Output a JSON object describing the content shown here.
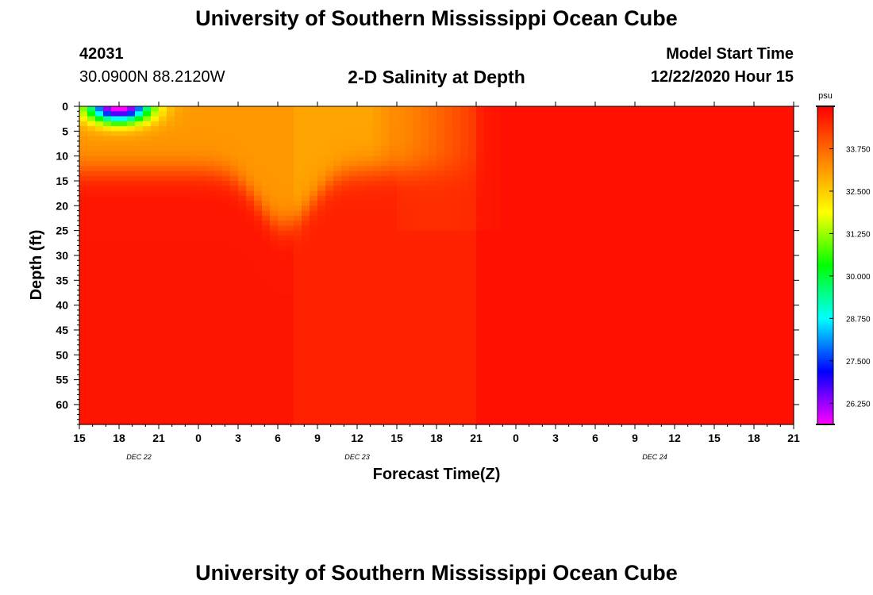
{
  "header": {
    "title": "University of Southern Mississippi Ocean Cube",
    "station_id": "42031",
    "station_coords": "30.0900N 88.2120W",
    "plot_title": "2-D Salinity at Depth",
    "start_label": "Model Start Time",
    "start_value": "12/22/2020 Hour 15"
  },
  "footer": {
    "title": "University of Southern Mississippi Ocean Cube"
  },
  "chart_data": {
    "type": "heatmap",
    "title": "2-D Salinity at Depth",
    "xlabel": "Forecast Time(Z)",
    "ylabel": "Depth (ft)",
    "x_range_hours": [
      0,
      54
    ],
    "ylim": [
      0,
      64
    ],
    "y_inverted": true,
    "x_ticks": [
      "15",
      "18",
      "21",
      "0",
      "3",
      "6",
      "9",
      "12",
      "15",
      "18",
      "21",
      "0",
      "3",
      "6",
      "9",
      "12",
      "15",
      "18",
      "21"
    ],
    "day_labels": [
      {
        "label": "DEC 22",
        "hour": 4.5
      },
      {
        "label": "DEC 23",
        "hour": 21
      },
      {
        "label": "DEC 24",
        "hour": 43.5
      }
    ],
    "y_ticks": [
      0,
      5,
      10,
      15,
      20,
      25,
      30,
      35,
      40,
      45,
      50,
      55,
      60
    ],
    "colorbar": {
      "unit": "psu",
      "min": 25.625,
      "max": 35.0,
      "labels": [
        "33.750",
        "32.500",
        "31.250",
        "30.000",
        "28.750",
        "27.500",
        "26.250"
      ],
      "label_values": [
        33.75,
        32.5,
        31.25,
        30.0,
        28.75,
        27.5,
        26.25
      ],
      "colors": [
        "#ff00ff",
        "#8000ff",
        "#0000ff",
        "#0080ff",
        "#00ffff",
        "#00ff80",
        "#00ff00",
        "#80ff00",
        "#ffff00",
        "#ffc000",
        "#ff8000",
        "#ff4000",
        "#ff0000"
      ]
    },
    "features": [
      {
        "name": "low salinity surface lens",
        "hours": [
          0,
          6
        ],
        "depth_ft": [
          0,
          8
        ],
        "min_psu": 26.5
      },
      {
        "name": "fresher surface layer",
        "hours": [
          0,
          13
        ],
        "depth_ft": [
          0,
          12
        ],
        "psu": 33.0
      },
      {
        "name": "downwelling tongue",
        "hour": 15.5,
        "depth_ft": [
          0,
          24
        ],
        "psu": 33.0
      },
      {
        "name": "bulk water",
        "depth_ft": [
          12,
          64
        ],
        "psu": 34.7
      }
    ]
  }
}
